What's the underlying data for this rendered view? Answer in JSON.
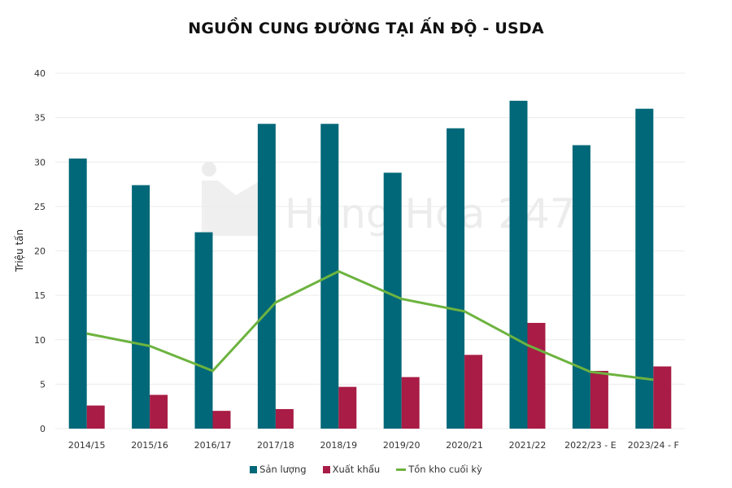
{
  "chart_data": {
    "type": "bar",
    "title": "NGUỒN CUNG ĐƯỜNG TẠI ẤN ĐỘ - USDA",
    "ylabel": "Triệu tấn",
    "xlabel": "",
    "ylim": [
      0,
      40
    ],
    "yticks": [
      0,
      5,
      10,
      15,
      20,
      25,
      30,
      35,
      40
    ],
    "grid": true,
    "legend_position": "bottom",
    "categories": [
      "2014/15",
      "2015/16",
      "2016/17",
      "2017/18",
      "2018/19",
      "2019/20",
      "2020/21",
      "2021/22",
      "2022/23 - E",
      "2023/24 - F"
    ],
    "series": [
      {
        "name": "Sản lượng",
        "type": "bar",
        "color": "#006878",
        "values": [
          30.4,
          27.4,
          22.1,
          34.3,
          34.3,
          28.8,
          33.8,
          36.9,
          31.9,
          36.0
        ]
      },
      {
        "name": "Xuất khẩu",
        "type": "bar",
        "color": "#a81c45",
        "values": [
          2.6,
          3.8,
          2.0,
          2.2,
          4.7,
          5.8,
          8.3,
          11.9,
          6.5,
          7.0
        ]
      },
      {
        "name": "Tồn kho cuối kỳ",
        "type": "line",
        "color": "#6db33f",
        "values": [
          10.7,
          9.3,
          6.5,
          14.2,
          17.7,
          14.6,
          13.2,
          9.4,
          6.4,
          5.5
        ]
      }
    ]
  },
  "watermark": "Hàng Hóa 247"
}
